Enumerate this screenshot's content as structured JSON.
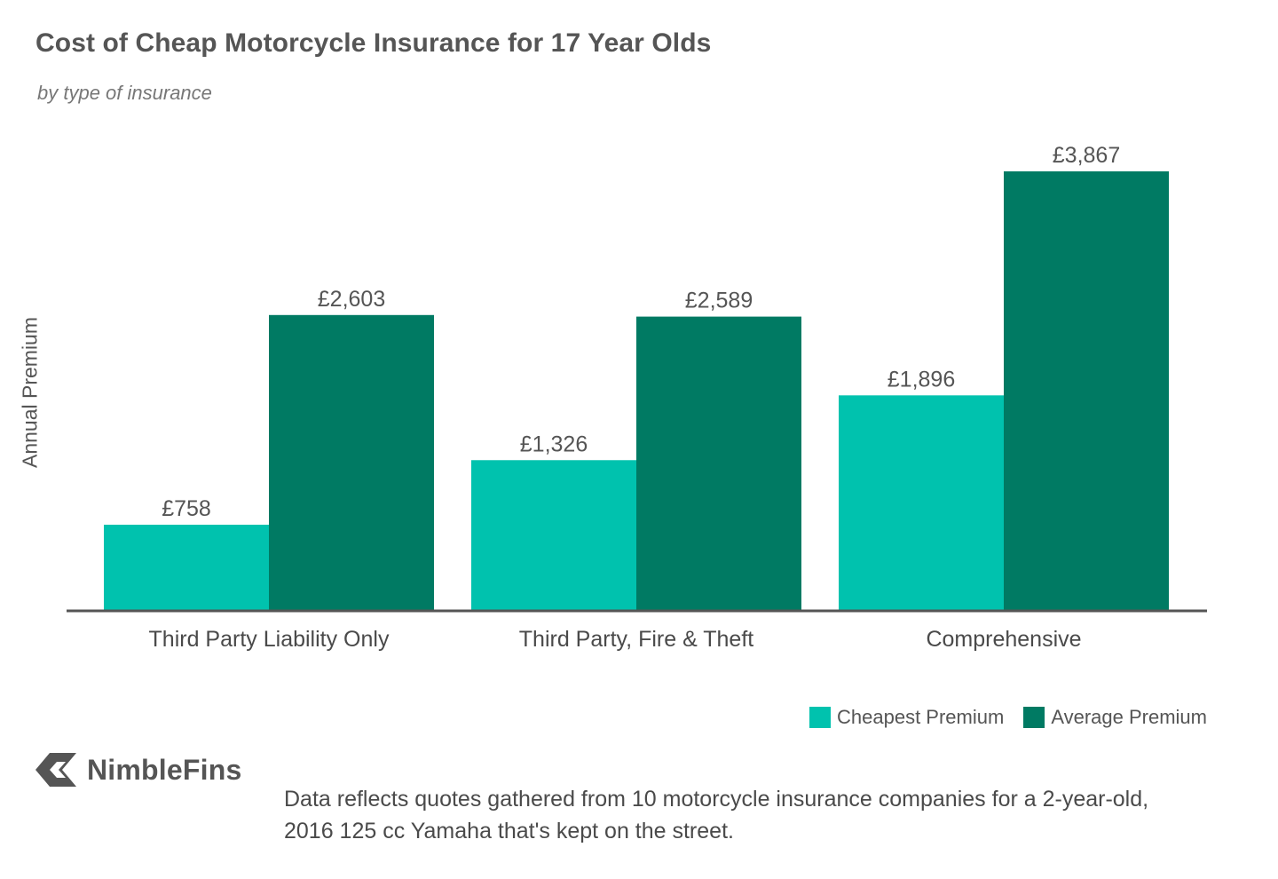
{
  "header": {
    "title": "Cost of Cheap Motorcycle Insurance for 17 Year Olds",
    "subtitle": "by type of insurance"
  },
  "chart_data": {
    "type": "bar",
    "title": "Cost of Cheap Motorcycle Insurance for 17 Year Olds",
    "subtitle": "by type of insurance",
    "xlabel": "",
    "ylabel": "Annual Premium",
    "categories": [
      "Third Party Liability Only",
      "Third Party, Fire & Theft",
      "Comprehensive"
    ],
    "series": [
      {
        "name": "Cheapest Premium",
        "color": "#00c2ae",
        "values": [
          758,
          1326,
          1896
        ],
        "labels": [
          "£758",
          "£1,326",
          "£1,896"
        ]
      },
      {
        "name": "Average Premium",
        "color": "#007a63",
        "values": [
          2603,
          2589,
          3867
        ],
        "labels": [
          "£2,603",
          "£2,589",
          "£3,867"
        ]
      }
    ],
    "ylim": [
      0,
      4100
    ],
    "grid": false,
    "legend_position": "bottom-right"
  },
  "legend": {
    "items": [
      {
        "label": "Cheapest Premium",
        "color": "#00c2ae"
      },
      {
        "label": "Average Premium",
        "color": "#007a63"
      }
    ]
  },
  "branding": {
    "logo_text": "NimbleFins",
    "logo_icon": "chevron-left-icon"
  },
  "footnote": "Data reflects quotes gathered from 10 motorcycle insurance companies for a 2-year-old, 2016 125 cc Yamaha that's kept on the street.",
  "colors": {
    "axis": "#555555",
    "cheapest": "#00c2ae",
    "average": "#007a63"
  }
}
